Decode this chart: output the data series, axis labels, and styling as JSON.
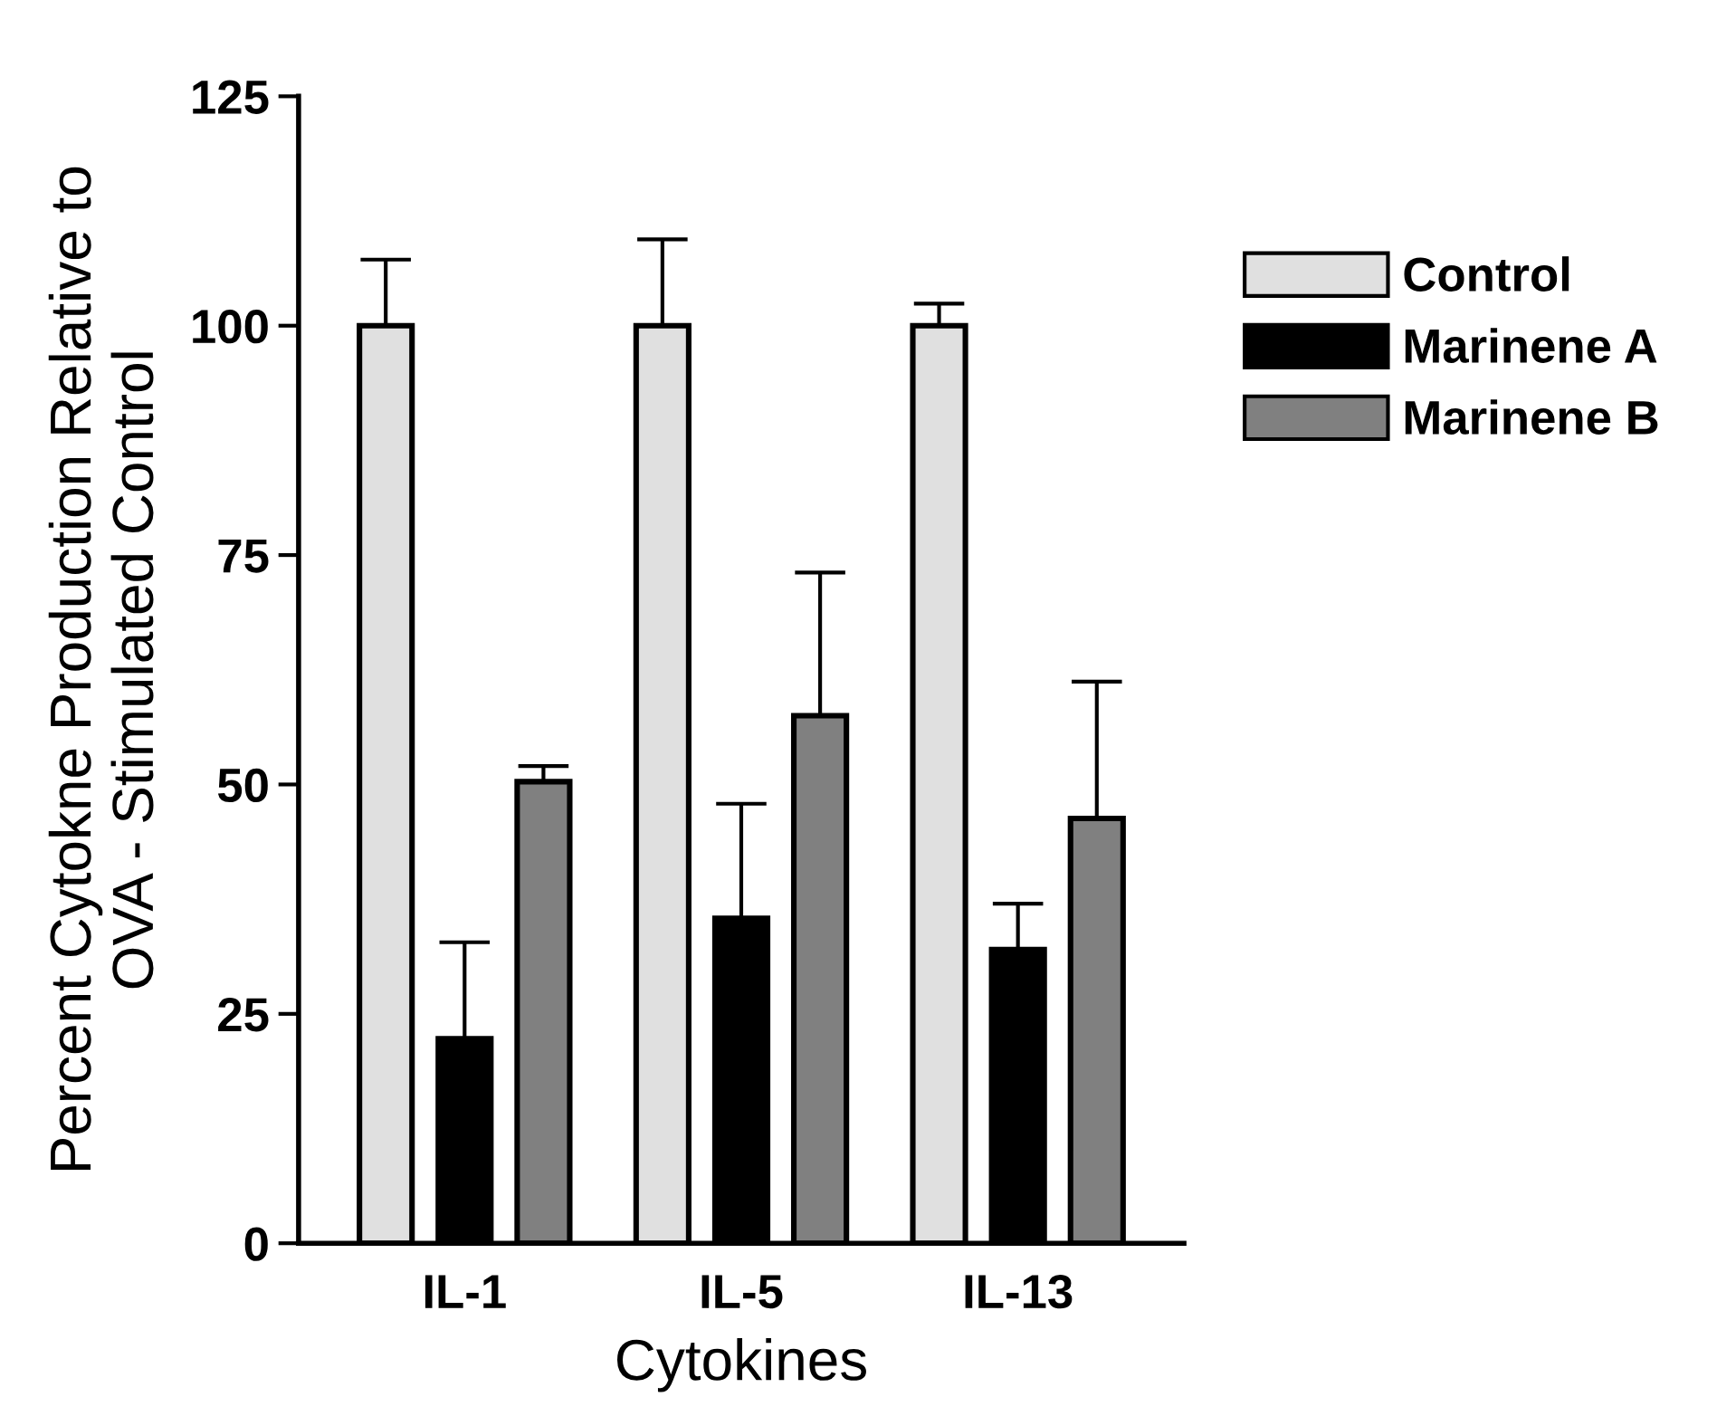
{
  "chart_data": {
    "type": "bar",
    "xlabel": "Cytokines",
    "ylabel": "Percent Cytokne Production Relative to\nOVA - Stimulated Control",
    "categories": [
      "IL-1",
      "IL-5",
      "IL-13"
    ],
    "series": [
      {
        "name": "Control",
        "color": "#e0e0e0",
        "values": [
          100,
          100,
          100
        ],
        "errors": [
          7.2,
          9.4,
          2.4
        ]
      },
      {
        "name": "Marinene A",
        "color": "#000000",
        "values": [
          22.3,
          35.4,
          32.0
        ],
        "errors": [
          10.5,
          12.5,
          5.0
        ]
      },
      {
        "name": "Marinene B",
        "color": "#808080",
        "values": [
          50.3,
          57.5,
          46.3
        ],
        "errors": [
          1.7,
          15.6,
          14.9
        ]
      }
    ],
    "ylim": [
      0,
      125
    ],
    "yticks": [
      0,
      25,
      50,
      75,
      100,
      125
    ],
    "grid": false,
    "legend": "right"
  }
}
